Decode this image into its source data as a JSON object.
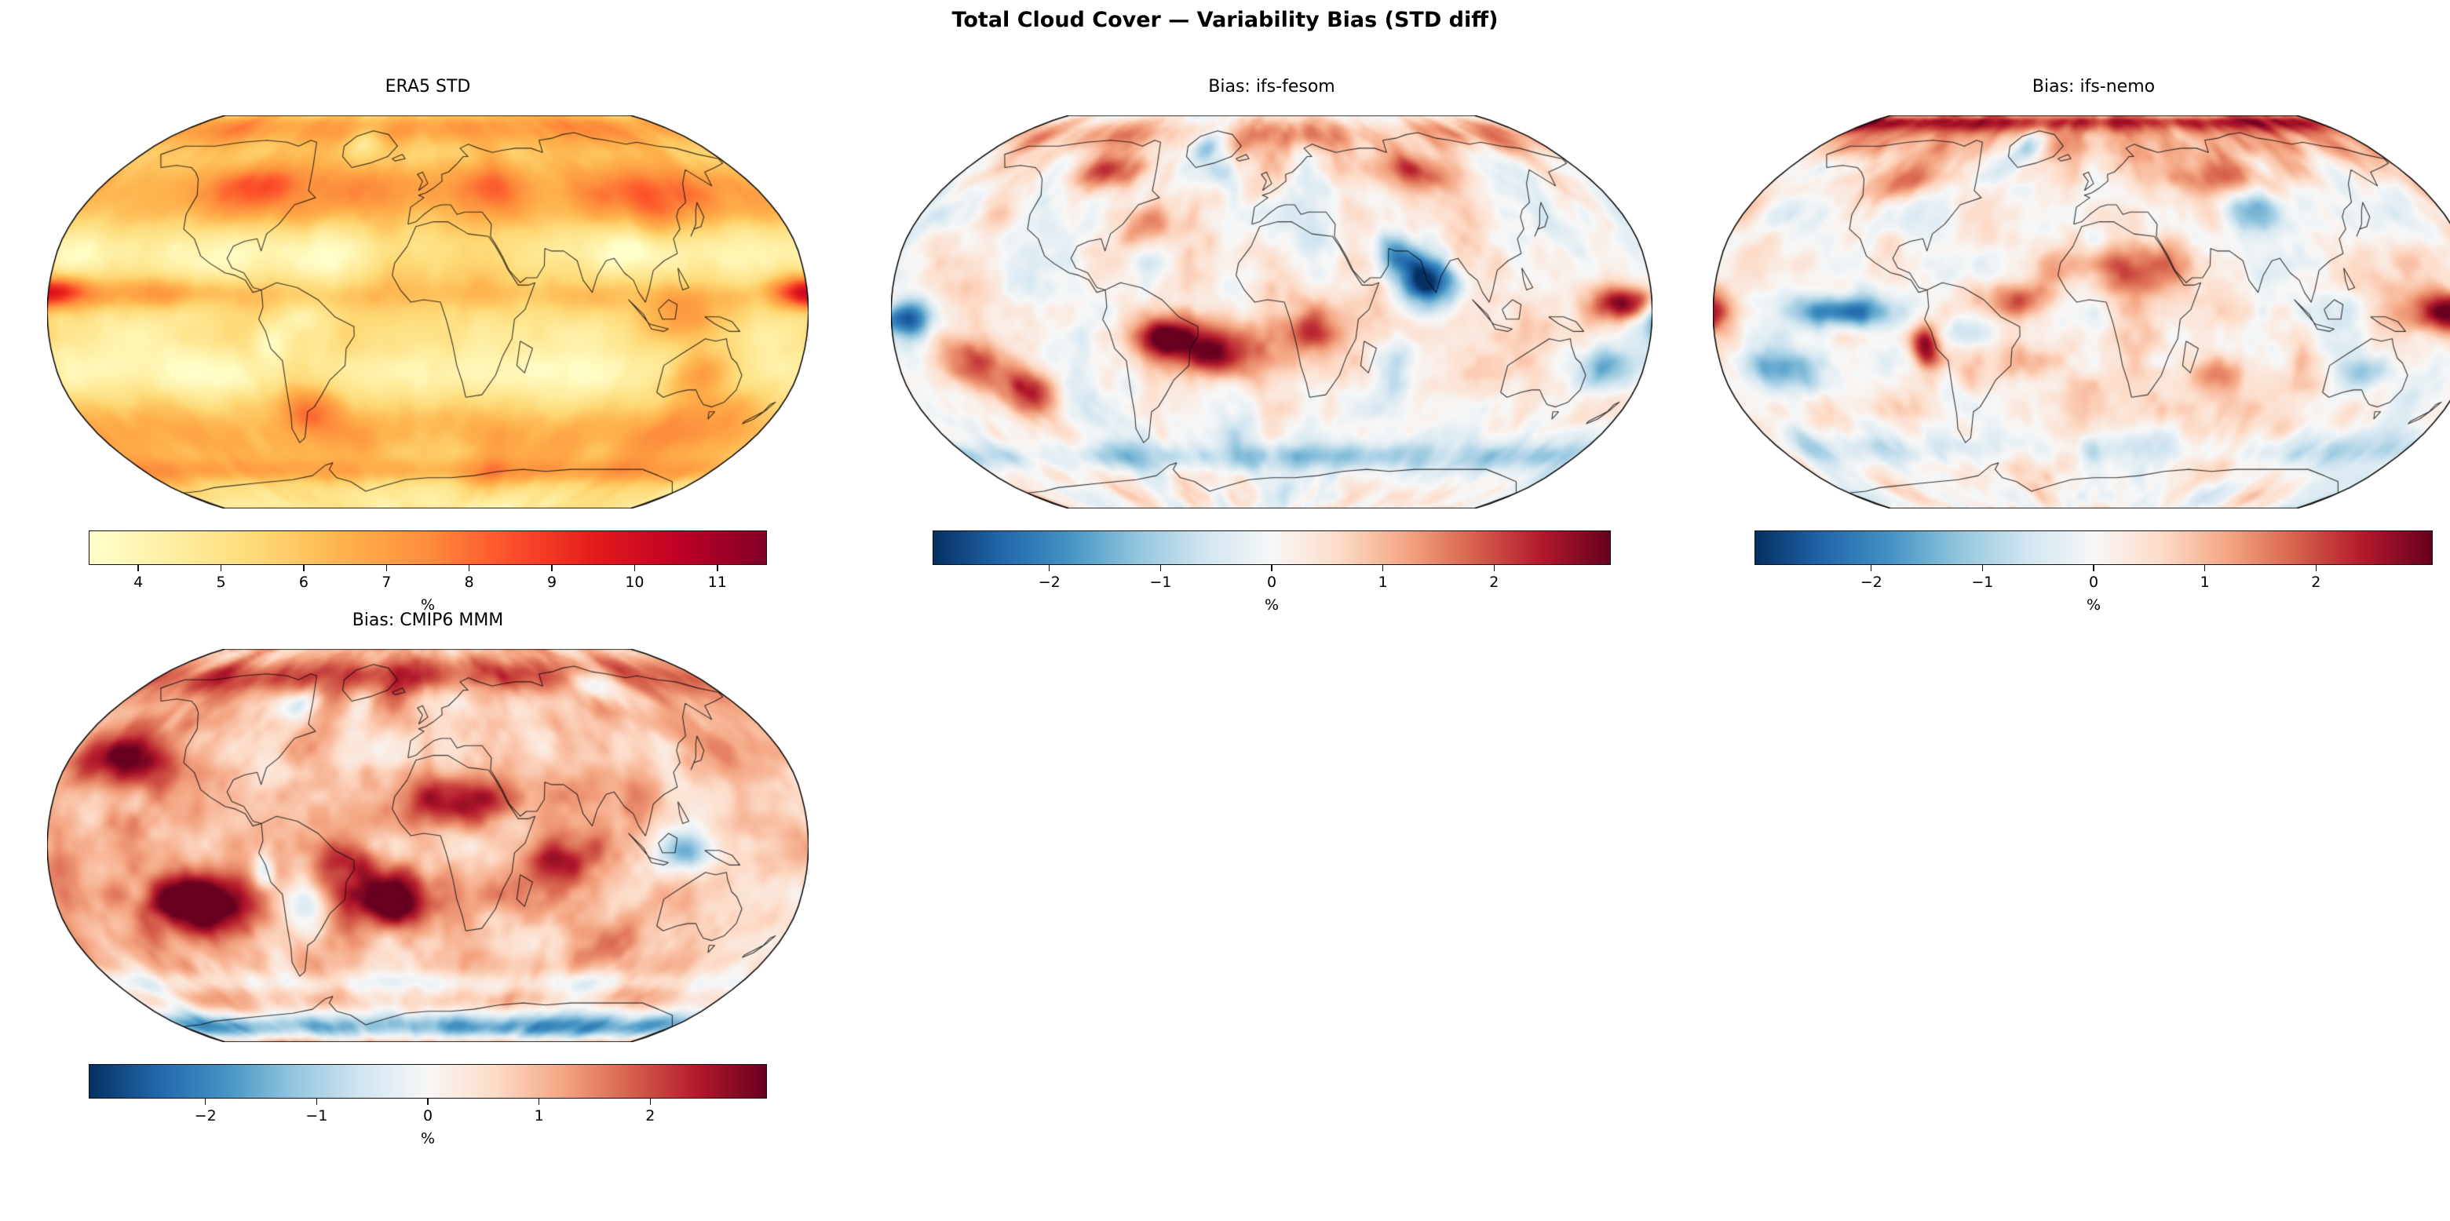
{
  "figure": {
    "title": "Total Cloud Cover — Variability Bias (STD diff)"
  },
  "chart_data": [
    {
      "id": "era5-std",
      "type": "heatmap",
      "projection": "robinson",
      "title": "ERA5 STD",
      "colormap": "YlOrRd",
      "colorbar": {
        "label": "%",
        "vmin": 3.4,
        "vmax": 11.6,
        "ticks": [
          4,
          5,
          6,
          7,
          8,
          9,
          10,
          11
        ],
        "tick_labels": [
          "4",
          "5",
          "6",
          "7",
          "8",
          "9",
          "10",
          "11"
        ]
      },
      "value_summary": {
        "units": "%",
        "low_regions": [
          "subtropical oceans",
          "Amazon basin",
          "Arctic Ocean interior",
          "Southern Ocean 50–65S band"
        ],
        "high_regions": [
          "Arctic coasts and Siberia",
          "northern mid-latitude continents",
          "Australia",
          "Maritime Continent",
          "equatorial Pacific ITCZ band at map edges",
          "Antarctic coastline"
        ]
      }
    },
    {
      "id": "bias-ifs-fesom",
      "type": "heatmap",
      "projection": "robinson",
      "title": "Bias: ifs-fesom",
      "colormap": "RdBu_r",
      "colorbar": {
        "label": "%",
        "vmin": -3.05,
        "vmax": 3.05,
        "ticks": [
          -2,
          -1,
          0,
          1,
          2
        ],
        "tick_labels": [
          "−2",
          "−1",
          "0",
          "1",
          "2"
        ]
      },
      "value_summary": {
        "units": "%",
        "positive_regions": [
          "South Atlantic off Brazil (strong)",
          "tropical South America",
          "southeast Pacific",
          "western tropical Pacific",
          "Canadian Arctic",
          "Siberia"
        ],
        "negative_regions": [
          "Arabian Sea and India (strong)",
          "Greenland / subpolar North Atlantic",
          "eastern equatorial Pacific at map edge",
          "Coral Sea east of Australia",
          "Southern Ocean near 60S"
        ]
      }
    },
    {
      "id": "bias-ifs-nemo",
      "type": "heatmap",
      "projection": "robinson",
      "title": "Bias: ifs-nemo",
      "colormap": "RdBu_r",
      "colorbar": {
        "label": "%",
        "vmin": -3.05,
        "vmax": 3.05,
        "ticks": [
          -2,
          -1,
          0,
          1,
          2
        ],
        "tick_labels": [
          "−2",
          "−1",
          "0",
          "1",
          "2"
        ]
      },
      "value_summary": {
        "units": "%",
        "positive_regions": [
          "entire Arctic rim (strong)",
          "Sahara / North Africa",
          "tropical Atlantic",
          "western Pacific warm pool (strong)",
          "Peru coast",
          "Russia and Canada"
        ],
        "negative_regions": [
          "eastern equatorial Pacific band",
          "central Asia",
          "interior Australia",
          "Greenland",
          "southern subtropical Pacific",
          "Southern Ocean"
        ]
      }
    },
    {
      "id": "bias-cmip6-mmm",
      "type": "heatmap",
      "projection": "robinson",
      "title": "Bias: CMIP6 MMM",
      "colormap": "RdBu_r",
      "colorbar": {
        "label": "%",
        "vmin": -3.05,
        "vmax": 3.05,
        "ticks": [
          -2,
          -1,
          0,
          1,
          2
        ],
        "tick_labels": [
          "−2",
          "−1",
          "0",
          "1",
          "2"
        ]
      },
      "value_summary": {
        "units": "%",
        "positive_regions": [
          "most continents and tropics (dominant red)",
          "southeast Pacific (strong)",
          "South Atlantic (strong)",
          "northeast Pacific",
          "Sahara",
          "Arctic rim"
        ],
        "negative_regions": [
          "Antarctica interior and coast",
          "northeast Siberia coast",
          "Maritime Continent patches",
          "Hudson Bay area",
          "Southern Ocean 55S band"
        ]
      }
    }
  ]
}
